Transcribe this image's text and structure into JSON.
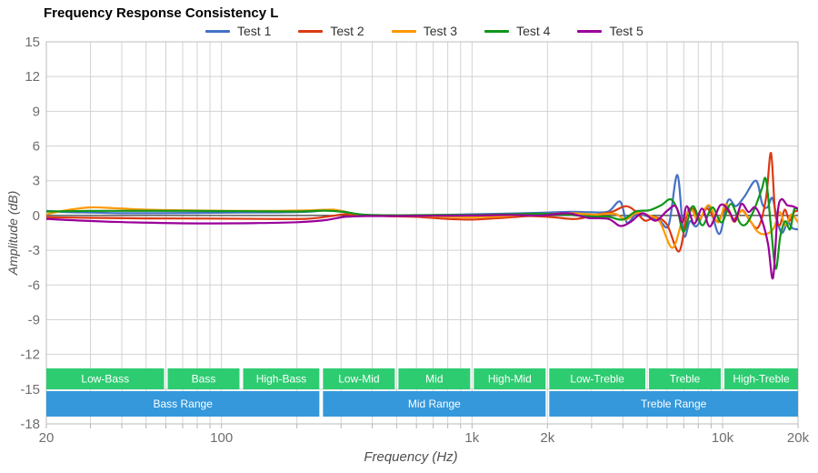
{
  "title": "Frequency Response Consistency L",
  "legend": {
    "items": [
      {
        "label": "Test 1",
        "color": "#4472C4"
      },
      {
        "label": "Test 2",
        "color": "#DC3912"
      },
      {
        "label": "Test 3",
        "color": "#FF9900"
      },
      {
        "label": "Test 4",
        "color": "#109618"
      },
      {
        "label": "Test 5",
        "color": "#990099"
      }
    ]
  },
  "axes": {
    "x": {
      "title": "Frequency (Hz)",
      "scale": "log",
      "min": 20,
      "max": 20000,
      "labels": [
        {
          "text": "20",
          "freq": 20
        },
        {
          "text": "100",
          "freq": 100
        },
        {
          "text": "1k",
          "freq": 1000
        },
        {
          "text": "2k",
          "freq": 2000
        },
        {
          "text": "10k",
          "freq": 10000
        },
        {
          "text": "20k",
          "freq": 20000
        }
      ],
      "minor_gridlines": [
        20,
        30,
        40,
        50,
        60,
        70,
        80,
        90,
        100,
        200,
        300,
        400,
        500,
        600,
        700,
        800,
        900,
        1000,
        2000,
        3000,
        4000,
        5000,
        6000,
        7000,
        8000,
        9000,
        10000,
        20000
      ]
    },
    "y": {
      "title": "Amplitude (dB)",
      "min": -18,
      "max": 15,
      "step": 3,
      "ticks": [
        "15",
        "12",
        "9",
        "6",
        "3",
        "0",
        "-3",
        "-6",
        "-9",
        "-12",
        "-15",
        "-18"
      ]
    }
  },
  "bands": {
    "sub_color": "#2ECC71",
    "range_color": "#3498DB",
    "text_color": "#ffffff",
    "sub_ranges": [
      {
        "label": "Low-Bass",
        "from": 20,
        "to": 60
      },
      {
        "label": "Bass",
        "from": 60,
        "to": 120
      },
      {
        "label": "High-Bass",
        "from": 120,
        "to": 250
      },
      {
        "label": "Low-Mid",
        "from": 250,
        "to": 500
      },
      {
        "label": "Mid",
        "from": 500,
        "to": 1000
      },
      {
        "label": "High-Mid",
        "from": 1000,
        "to": 2000
      },
      {
        "label": "Low-Treble",
        "from": 2000,
        "to": 5000
      },
      {
        "label": "Treble",
        "from": 5000,
        "to": 10000
      },
      {
        "label": "High-Treble",
        "from": 10000,
        "to": 20000
      }
    ],
    "ranges": [
      {
        "label": "Bass Range",
        "from": 20,
        "to": 250
      },
      {
        "label": "Mid Range",
        "from": 250,
        "to": 2000
      },
      {
        "label": "Treble Range",
        "from": 2000,
        "to": 20000
      }
    ]
  },
  "chart_data": {
    "type": "line",
    "title": "Frequency Response Consistency L",
    "xlabel": "Frequency (Hz)",
    "ylabel": "Amplitude (dB)",
    "xscale": "log",
    "xlim": [
      20,
      20000
    ],
    "ylim": [
      -18,
      15
    ],
    "grid": true,
    "legend_position": "top",
    "series": [
      {
        "name": "Test 1",
        "color": "#4472C4",
        "points": [
          [
            20,
            0.4
          ],
          [
            24,
            0.3
          ],
          [
            30,
            0.25
          ],
          [
            40,
            0.2
          ],
          [
            55,
            0.2
          ],
          [
            80,
            0.22
          ],
          [
            120,
            0.25
          ],
          [
            170,
            0.27
          ],
          [
            220,
            0.32
          ],
          [
            260,
            0.45
          ],
          [
            300,
            0.4
          ],
          [
            340,
            0.15
          ],
          [
            400,
            0.02
          ],
          [
            500,
            0
          ],
          [
            650,
            0.02
          ],
          [
            850,
            0.07
          ],
          [
            1100,
            0.12
          ],
          [
            1500,
            0.18
          ],
          [
            2000,
            0.25
          ],
          [
            2500,
            0.32
          ],
          [
            3000,
            0.28
          ],
          [
            3500,
            0.35
          ],
          [
            3900,
            1.2
          ],
          [
            4150,
            -0.6
          ],
          [
            4500,
            0.05
          ],
          [
            5000,
            -0.05
          ],
          [
            5600,
            -0.45
          ],
          [
            6100,
            -0.8
          ],
          [
            6600,
            3.5
          ],
          [
            7000,
            -1.7
          ],
          [
            7400,
            -0.5
          ],
          [
            7900,
            -0.9
          ],
          [
            8800,
            0.8
          ],
          [
            9700,
            -1.6
          ],
          [
            10500,
            1.3
          ],
          [
            11300,
            0.8
          ],
          [
            12200,
            1.6
          ],
          [
            13600,
            3.0
          ],
          [
            14400,
            1.0
          ],
          [
            15100,
            0.7
          ],
          [
            15800,
            1.5
          ],
          [
            16600,
            -0.6
          ],
          [
            17300,
            -1.5
          ],
          [
            18200,
            -0.6
          ],
          [
            19000,
            -1.1
          ],
          [
            20000,
            -1.2
          ]
        ]
      },
      {
        "name": "Test 2",
        "color": "#DC3912",
        "points": [
          [
            20,
            -0.15
          ],
          [
            30,
            -0.2
          ],
          [
            50,
            -0.25
          ],
          [
            90,
            -0.27
          ],
          [
            150,
            -0.3
          ],
          [
            220,
            -0.28
          ],
          [
            275,
            -0.05
          ],
          [
            310,
            0.1
          ],
          [
            360,
            0.03
          ],
          [
            450,
            -0.05
          ],
          [
            600,
            -0.12
          ],
          [
            800,
            -0.3
          ],
          [
            1000,
            -0.35
          ],
          [
            1300,
            -0.22
          ],
          [
            1700,
            -0.05
          ],
          [
            2100,
            -0.15
          ],
          [
            2600,
            -0.3
          ],
          [
            3100,
            0.05
          ],
          [
            3600,
            0.3
          ],
          [
            4100,
            0.8
          ],
          [
            4500,
            0.35
          ],
          [
            4900,
            -0.45
          ],
          [
            5400,
            -0.15
          ],
          [
            6000,
            -0.8
          ],
          [
            6700,
            -3.1
          ],
          [
            7200,
            0.1
          ],
          [
            7600,
            0.6
          ],
          [
            8100,
            -0.25
          ],
          [
            8700,
            0.6
          ],
          [
            9500,
            -0.5
          ],
          [
            10300,
            0.55
          ],
          [
            11100,
            -0.3
          ],
          [
            12000,
            0.45
          ],
          [
            12900,
            -0.5
          ],
          [
            13900,
            -1.0
          ],
          [
            14900,
            1.5
          ],
          [
            15600,
            5.4
          ],
          [
            16200,
            0.3
          ],
          [
            16900,
            -0.85
          ],
          [
            17700,
            0.5
          ],
          [
            18500,
            -0.45
          ],
          [
            19300,
            0.3
          ],
          [
            20000,
            0.4
          ]
        ]
      },
      {
        "name": "Test 3",
        "color": "#FF9900",
        "points": [
          [
            20,
            0.1
          ],
          [
            24,
            0.45
          ],
          [
            30,
            0.7
          ],
          [
            38,
            0.62
          ],
          [
            50,
            0.5
          ],
          [
            70,
            0.45
          ],
          [
            110,
            0.4
          ],
          [
            170,
            0.4
          ],
          [
            230,
            0.45
          ],
          [
            280,
            0.5
          ],
          [
            320,
            0.25
          ],
          [
            370,
            0.05
          ],
          [
            500,
            0
          ],
          [
            700,
            -0.07
          ],
          [
            950,
            -0.15
          ],
          [
            1250,
            -0.1
          ],
          [
            1600,
            0.05
          ],
          [
            2000,
            0.12
          ],
          [
            2500,
            0.2
          ],
          [
            3100,
            0.08
          ],
          [
            3700,
            0.15
          ],
          [
            4100,
            -0.35
          ],
          [
            4500,
            0.2
          ],
          [
            5000,
            0.05
          ],
          [
            5600,
            -0.5
          ],
          [
            6300,
            -2.8
          ],
          [
            6900,
            -0.5
          ],
          [
            7500,
            0.5
          ],
          [
            8000,
            -0.45
          ],
          [
            8800,
            0.9
          ],
          [
            9600,
            -0.6
          ],
          [
            10300,
            1.0
          ],
          [
            11100,
            -0.55
          ],
          [
            11900,
            0.4
          ],
          [
            12800,
            -0.35
          ],
          [
            13800,
            -1.4
          ],
          [
            14900,
            -1.6
          ],
          [
            16000,
            -1.1
          ],
          [
            16900,
            0.3
          ],
          [
            17800,
            -0.85
          ],
          [
            18800,
            0.1
          ],
          [
            20000,
            -0.6
          ]
        ]
      },
      {
        "name": "Test 4",
        "color": "#109618",
        "points": [
          [
            20,
            0.35
          ],
          [
            35,
            0.4
          ],
          [
            70,
            0.4
          ],
          [
            130,
            0.37
          ],
          [
            200,
            0.35
          ],
          [
            260,
            0.42
          ],
          [
            310,
            0.3
          ],
          [
            370,
            0.07
          ],
          [
            500,
            0.02
          ],
          [
            700,
            0.05
          ],
          [
            1000,
            0.05
          ],
          [
            1400,
            0.1
          ],
          [
            1800,
            0.15
          ],
          [
            2300,
            0.1
          ],
          [
            2900,
            -0.08
          ],
          [
            3500,
            -0.12
          ],
          [
            4000,
            -0.35
          ],
          [
            4500,
            0.35
          ],
          [
            5100,
            0.45
          ],
          [
            5700,
            0.9
          ],
          [
            6200,
            1.4
          ],
          [
            6600,
            0.5
          ],
          [
            7000,
            -1.4
          ],
          [
            7600,
            0.8
          ],
          [
            8300,
            -0.85
          ],
          [
            9100,
            0.7
          ],
          [
            9900,
            -0.6
          ],
          [
            10800,
            1.0
          ],
          [
            11700,
            -0.6
          ],
          [
            12400,
            -0.75
          ],
          [
            13300,
            0.4
          ],
          [
            14300,
            2.2
          ],
          [
            14900,
            3.1
          ],
          [
            15600,
            -1.0
          ],
          [
            16300,
            -4.6
          ],
          [
            17000,
            -1.8
          ],
          [
            17800,
            -0.5
          ],
          [
            18600,
            -1.2
          ],
          [
            19300,
            0.5
          ],
          [
            20000,
            0.5
          ]
        ]
      },
      {
        "name": "Test 5",
        "color": "#990099",
        "points": [
          [
            20,
            -0.3
          ],
          [
            28,
            -0.45
          ],
          [
            45,
            -0.6
          ],
          [
            80,
            -0.68
          ],
          [
            140,
            -0.65
          ],
          [
            200,
            -0.58
          ],
          [
            260,
            -0.4
          ],
          [
            310,
            -0.12
          ],
          [
            380,
            -0.05
          ],
          [
            500,
            -0.05
          ],
          [
            700,
            -0.02
          ],
          [
            1000,
            0
          ],
          [
            1400,
            0.05
          ],
          [
            1900,
            0
          ],
          [
            2400,
            0.2
          ],
          [
            2900,
            -0.2
          ],
          [
            3500,
            -0.3
          ],
          [
            3900,
            -0.9
          ],
          [
            4300,
            -0.55
          ],
          [
            4800,
            0.2
          ],
          [
            5400,
            -0.45
          ],
          [
            6000,
            0.4
          ],
          [
            6500,
            0.8
          ],
          [
            6900,
            -0.6
          ],
          [
            7200,
            0.8
          ],
          [
            7700,
            -0.7
          ],
          [
            8300,
            0.6
          ],
          [
            8900,
            -0.95
          ],
          [
            9800,
            0.9
          ],
          [
            10600,
            0.4
          ],
          [
            11200,
            -0.5
          ],
          [
            11900,
            1.0
          ],
          [
            12700,
            0.3
          ],
          [
            13500,
            0.7
          ],
          [
            14400,
            -0.5
          ],
          [
            15200,
            -2.5
          ],
          [
            15900,
            -5.4
          ],
          [
            16600,
            0.3
          ],
          [
            17200,
            1.4
          ],
          [
            18100,
            0.9
          ],
          [
            19000,
            0.8
          ],
          [
            20000,
            0.6
          ]
        ]
      }
    ]
  }
}
